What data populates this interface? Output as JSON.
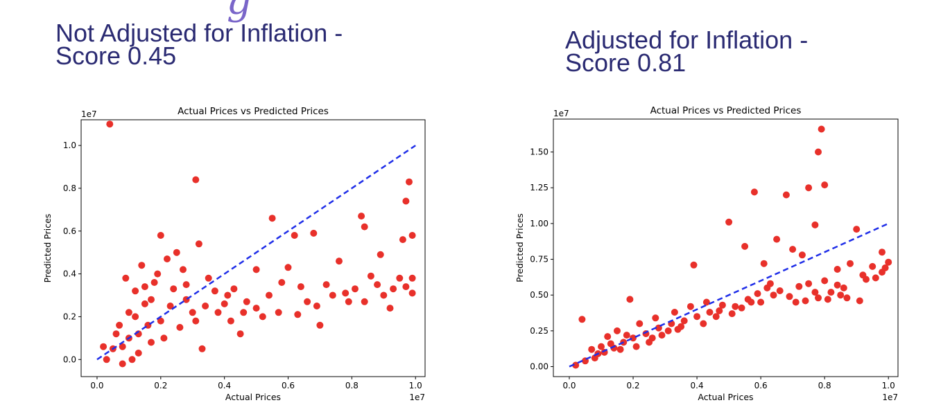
{
  "headings": [
    {
      "line1": "Not Adjusted for Inflation -",
      "line2": "Score 0.45"
    },
    {
      "line1": "Adjusted for Inflation -",
      "line2": "Score 0.81"
    }
  ],
  "colors": {
    "points": "#e8302a",
    "fit_line": "#1f2ee8",
    "heading": "#2a2a72"
  },
  "chart_data": [
    {
      "type": "scatter",
      "title": "Actual Prices vs Predicted Prices",
      "xlabel": "Actual Prices",
      "ylabel": "Predicted Prices",
      "x_offset_label": "1e7",
      "y_offset_label": "1e7",
      "xlim": [
        -0.05,
        1.03
      ],
      "ylim": [
        -0.08,
        1.12
      ],
      "xticks": [
        0.0,
        0.2,
        0.4,
        0.6,
        0.8,
        1.0
      ],
      "xtick_labels": [
        "0.0",
        "0.2",
        "0.4",
        "0.6",
        "0.8",
        "1.0"
      ],
      "yticks": [
        0.0,
        0.2,
        0.4,
        0.6,
        0.8,
        1.0
      ],
      "ytick_labels": [
        "0.0",
        "0.2",
        "0.4",
        "0.6",
        "0.8",
        "1.0"
      ],
      "grid": false,
      "reference_line": {
        "style": "dashed",
        "from": [
          0.0,
          0.0
        ],
        "to": [
          1.0,
          1.0
        ]
      },
      "points": [
        [
          0.04,
          1.1
        ],
        [
          0.31,
          0.84
        ],
        [
          0.98,
          0.83
        ],
        [
          0.97,
          0.74
        ],
        [
          0.83,
          0.67
        ],
        [
          0.84,
          0.62
        ],
        [
          0.55,
          0.66
        ],
        [
          0.89,
          0.49
        ],
        [
          0.96,
          0.56
        ],
        [
          0.99,
          0.58
        ],
        [
          0.68,
          0.59
        ],
        [
          0.62,
          0.58
        ],
        [
          0.32,
          0.54
        ],
        [
          0.2,
          0.58
        ],
        [
          0.76,
          0.46
        ],
        [
          0.6,
          0.43
        ],
        [
          0.99,
          0.38
        ],
        [
          0.99,
          0.31
        ],
        [
          0.93,
          0.33
        ],
        [
          0.86,
          0.39
        ],
        [
          0.84,
          0.27
        ],
        [
          0.72,
          0.35
        ],
        [
          0.66,
          0.27
        ],
        [
          0.58,
          0.36
        ],
        [
          0.5,
          0.42
        ],
        [
          0.5,
          0.24
        ],
        [
          0.41,
          0.3
        ],
        [
          0.33,
          0.05
        ],
        [
          0.42,
          0.18
        ],
        [
          0.45,
          0.12
        ],
        [
          0.7,
          0.16
        ],
        [
          0.92,
          0.24
        ],
        [
          0.78,
          0.31
        ],
        [
          0.27,
          0.42
        ],
        [
          0.22,
          0.47
        ],
        [
          0.25,
          0.5
        ],
        [
          0.13,
          0.03
        ],
        [
          0.08,
          -0.02
        ],
        [
          0.11,
          0.0
        ],
        [
          0.15,
          0.26
        ],
        [
          0.12,
          0.32
        ],
        [
          0.18,
          0.36
        ],
        [
          0.1,
          0.22
        ],
        [
          0.06,
          0.12
        ],
        [
          0.05,
          0.05
        ],
        [
          0.03,
          0.0
        ],
        [
          0.02,
          0.06
        ],
        [
          0.09,
          0.38
        ],
        [
          0.14,
          0.44
        ],
        [
          0.17,
          0.28
        ],
        [
          0.24,
          0.33
        ],
        [
          0.28,
          0.28
        ],
        [
          0.35,
          0.38
        ],
        [
          0.38,
          0.22
        ],
        [
          0.31,
          0.18
        ],
        [
          0.26,
          0.15
        ],
        [
          0.21,
          0.1
        ],
        [
          0.17,
          0.08
        ],
        [
          0.54,
          0.3
        ],
        [
          0.64,
          0.34
        ],
        [
          0.74,
          0.3
        ],
        [
          0.81,
          0.33
        ],
        [
          0.88,
          0.35
        ],
        [
          0.95,
          0.38
        ],
        [
          0.57,
          0.22
        ],
        [
          0.63,
          0.21
        ],
        [
          0.69,
          0.25
        ],
        [
          0.47,
          0.27
        ],
        [
          0.43,
          0.33
        ],
        [
          0.4,
          0.26
        ],
        [
          0.37,
          0.32
        ],
        [
          0.34,
          0.25
        ],
        [
          0.3,
          0.22
        ],
        [
          0.28,
          0.35
        ],
        [
          0.23,
          0.25
        ],
        [
          0.2,
          0.18
        ],
        [
          0.16,
          0.16
        ],
        [
          0.13,
          0.12
        ],
        [
          0.12,
          0.2
        ],
        [
          0.1,
          0.1
        ],
        [
          0.08,
          0.06
        ],
        [
          0.07,
          0.16
        ],
        [
          0.15,
          0.34
        ],
        [
          0.19,
          0.4
        ],
        [
          0.52,
          0.2
        ],
        [
          0.46,
          0.22
        ],
        [
          0.79,
          0.27
        ],
        [
          0.9,
          0.3
        ],
        [
          0.97,
          0.34
        ]
      ]
    },
    {
      "type": "scatter",
      "title": "Actual Prices vs Predicted Prices",
      "xlabel": "Actual Prices",
      "ylabel": "Predicted Prices",
      "x_offset_label": "1e7",
      "y_offset_label": "1e7",
      "xlim": [
        -0.05,
        1.03
      ],
      "ylim": [
        -0.07,
        1.73
      ],
      "xticks": [
        0.0,
        0.2,
        0.4,
        0.6,
        0.8,
        1.0
      ],
      "xtick_labels": [
        "0.0",
        "0.2",
        "0.4",
        "0.6",
        "0.8",
        "1.0"
      ],
      "yticks": [
        0.0,
        0.25,
        0.5,
        0.75,
        1.0,
        1.25,
        1.5
      ],
      "ytick_labels": [
        "0.00",
        "0.25",
        "0.50",
        "0.75",
        "1.00",
        "1.25",
        "1.50"
      ],
      "grid": false,
      "reference_line": {
        "style": "dashed",
        "from": [
          0.0,
          0.0
        ],
        "to": [
          1.0,
          1.0
        ]
      },
      "points": [
        [
          0.79,
          1.66
        ],
        [
          0.78,
          1.5
        ],
        [
          0.8,
          1.27
        ],
        [
          0.75,
          1.25
        ],
        [
          0.58,
          1.22
        ],
        [
          0.68,
          1.2
        ],
        [
          0.5,
          1.01
        ],
        [
          0.77,
          0.99
        ],
        [
          0.9,
          0.96
        ],
        [
          0.65,
          0.89
        ],
        [
          0.55,
          0.84
        ],
        [
          0.7,
          0.82
        ],
        [
          0.73,
          0.78
        ],
        [
          0.98,
          0.8
        ],
        [
          1.0,
          0.73
        ],
        [
          0.39,
          0.71
        ],
        [
          0.04,
          0.33
        ],
        [
          0.98,
          0.66
        ],
        [
          0.96,
          0.62
        ],
        [
          0.84,
          0.68
        ],
        [
          0.88,
          0.72
        ],
        [
          0.8,
          0.6
        ],
        [
          0.85,
          0.5
        ],
        [
          0.91,
          0.46
        ],
        [
          0.61,
          0.72
        ],
        [
          0.63,
          0.58
        ],
        [
          0.57,
          0.45
        ],
        [
          0.48,
          0.43
        ],
        [
          0.44,
          0.38
        ],
        [
          0.4,
          0.35
        ],
        [
          0.36,
          0.32
        ],
        [
          0.32,
          0.3
        ],
        [
          0.28,
          0.27
        ],
        [
          0.24,
          0.23
        ],
        [
          0.2,
          0.2
        ],
        [
          0.17,
          0.17
        ],
        [
          0.14,
          0.13
        ],
        [
          0.11,
          0.1
        ],
        [
          0.08,
          0.06
        ],
        [
          0.05,
          0.04
        ],
        [
          0.02,
          0.01
        ],
        [
          0.19,
          0.47
        ],
        [
          0.21,
          0.14
        ],
        [
          0.26,
          0.2
        ],
        [
          0.31,
          0.25
        ],
        [
          0.35,
          0.28
        ],
        [
          0.42,
          0.3
        ],
        [
          0.46,
          0.35
        ],
        [
          0.52,
          0.42
        ],
        [
          0.56,
          0.47
        ],
        [
          0.59,
          0.51
        ],
        [
          0.62,
          0.55
        ],
        [
          0.66,
          0.53
        ],
        [
          0.69,
          0.49
        ],
        [
          0.72,
          0.56
        ],
        [
          0.75,
          0.58
        ],
        [
          0.78,
          0.48
        ],
        [
          0.82,
          0.52
        ],
        [
          0.86,
          0.55
        ],
        [
          0.93,
          0.61
        ],
        [
          0.99,
          0.69
        ],
        [
          0.16,
          0.12
        ],
        [
          0.13,
          0.16
        ],
        [
          0.09,
          0.09
        ],
        [
          0.07,
          0.12
        ],
        [
          0.12,
          0.21
        ],
        [
          0.15,
          0.25
        ],
        [
          0.22,
          0.3
        ],
        [
          0.27,
          0.34
        ],
        [
          0.33,
          0.38
        ],
        [
          0.38,
          0.42
        ],
        [
          0.43,
          0.45
        ],
        [
          0.47,
          0.39
        ],
        [
          0.51,
          0.37
        ],
        [
          0.54,
          0.41
        ],
        [
          0.6,
          0.45
        ],
        [
          0.64,
          0.5
        ],
        [
          0.71,
          0.45
        ],
        [
          0.74,
          0.46
        ],
        [
          0.77,
          0.52
        ],
        [
          0.81,
          0.47
        ],
        [
          0.84,
          0.57
        ],
        [
          0.87,
          0.48
        ],
        [
          0.92,
          0.64
        ],
        [
          0.95,
          0.7
        ],
        [
          0.29,
          0.22
        ],
        [
          0.34,
          0.26
        ],
        [
          0.25,
          0.17
        ],
        [
          0.18,
          0.22
        ],
        [
          0.1,
          0.14
        ]
      ]
    }
  ]
}
